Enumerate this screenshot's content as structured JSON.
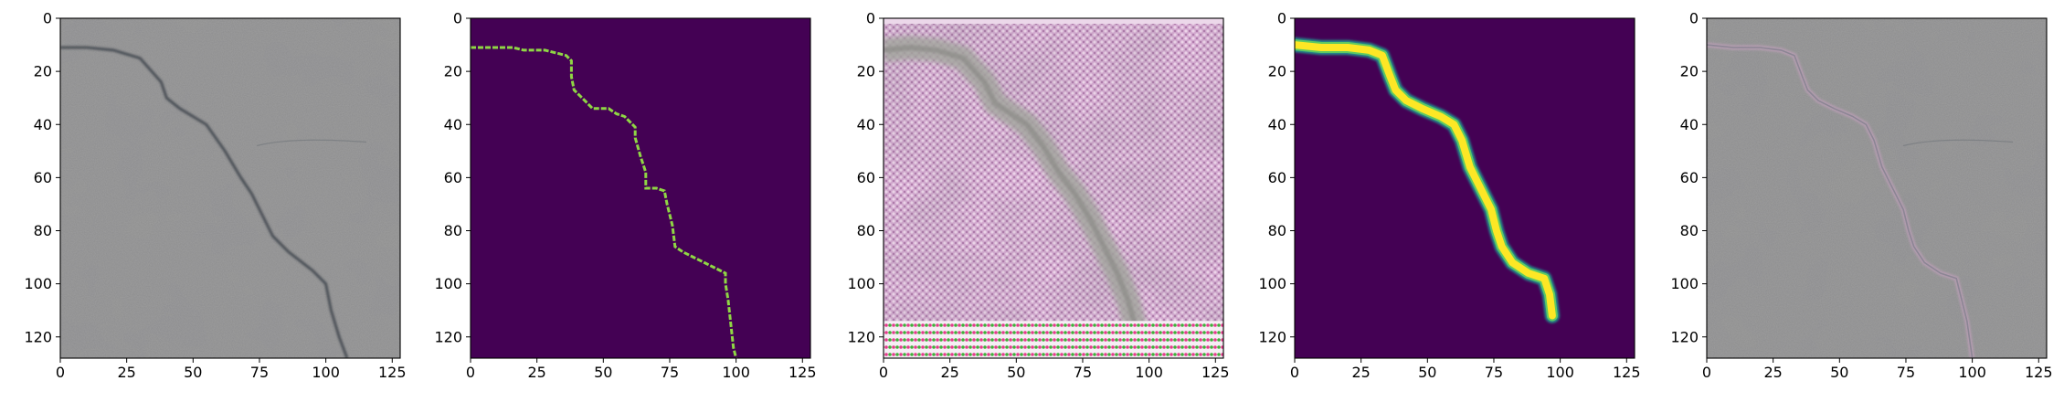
{
  "figure": {
    "background": "#ffffff"
  },
  "chart_data": [
    {
      "type": "heatmap",
      "panel": "crack-photo",
      "colormap": "rgb-photo",
      "xlim": [
        0,
        128
      ],
      "ylim": [
        128,
        0
      ],
      "xticks": [
        0,
        25,
        50,
        75,
        100,
        125
      ],
      "yticks": [
        0,
        20,
        40,
        60,
        80,
        100,
        120
      ],
      "crack_path": [
        [
          0,
          11
        ],
        [
          10,
          11
        ],
        [
          20,
          12
        ],
        [
          30,
          15
        ],
        [
          38,
          24
        ],
        [
          40,
          30
        ],
        [
          45,
          34
        ],
        [
          55,
          40
        ],
        [
          62,
          50
        ],
        [
          68,
          60
        ],
        [
          72,
          66
        ],
        [
          76,
          74
        ],
        [
          80,
          82
        ],
        [
          86,
          88
        ],
        [
          95,
          95
        ],
        [
          100,
          100
        ],
        [
          102,
          110
        ],
        [
          105,
          120
        ],
        [
          108,
          128
        ]
      ],
      "colors": {
        "base": "#8e8e8e",
        "crack": "#343a44"
      }
    },
    {
      "type": "heatmap",
      "panel": "ground-truth-mask",
      "colormap": "viridis",
      "xlim": [
        0,
        128
      ],
      "ylim": [
        128,
        0
      ],
      "xticks": [
        0,
        25,
        50,
        75,
        100,
        125
      ],
      "yticks": [
        0,
        20,
        40,
        60,
        80,
        100,
        120
      ],
      "crack_path": [
        [
          0,
          11
        ],
        [
          8,
          11
        ],
        [
          16,
          11
        ],
        [
          20,
          12
        ],
        [
          25,
          12
        ],
        [
          28,
          12
        ],
        [
          32,
          13
        ],
        [
          36,
          14
        ],
        [
          38,
          16
        ],
        [
          38,
          22
        ],
        [
          39,
          27
        ],
        [
          42,
          30
        ],
        [
          46,
          34
        ],
        [
          52,
          34
        ],
        [
          55,
          36
        ],
        [
          58,
          37
        ],
        [
          62,
          41
        ],
        [
          62,
          45
        ],
        [
          64,
          52
        ],
        [
          66,
          58
        ],
        [
          66,
          64
        ],
        [
          70,
          64
        ],
        [
          73,
          65
        ],
        [
          74,
          70
        ],
        [
          76,
          78
        ],
        [
          77,
          86
        ],
        [
          80,
          88
        ],
        [
          84,
          90
        ],
        [
          88,
          92
        ],
        [
          94,
          95
        ],
        [
          96,
          96
        ],
        [
          96,
          100
        ],
        [
          97,
          106
        ],
        [
          98,
          115
        ],
        [
          99,
          124
        ],
        [
          100,
          128
        ]
      ],
      "colors": {
        "background": "#440154",
        "crack": "#8fd744"
      }
    },
    {
      "type": "heatmap",
      "panel": "generated-crack-image",
      "colormap": "rgb-photo",
      "xlim": [
        0,
        128
      ],
      "ylim": [
        128,
        0
      ],
      "xticks": [
        0,
        25,
        50,
        75,
        100,
        125
      ],
      "yticks": [
        0,
        20,
        40,
        60,
        80,
        100,
        120
      ],
      "crack_path": [
        [
          0,
          12
        ],
        [
          10,
          11
        ],
        [
          20,
          12
        ],
        [
          30,
          15
        ],
        [
          38,
          24
        ],
        [
          42,
          32
        ],
        [
          48,
          36
        ],
        [
          54,
          40
        ],
        [
          60,
          48
        ],
        [
          66,
          58
        ],
        [
          72,
          66
        ],
        [
          78,
          76
        ],
        [
          84,
          88
        ],
        [
          88,
          96
        ],
        [
          92,
          106
        ],
        [
          96,
          120
        ]
      ],
      "colors": {
        "base": "#c49ac0",
        "crack": "#a2a49e",
        "bottom_band": "#f0e8f0"
      }
    },
    {
      "type": "heatmap",
      "panel": "predicted-mask",
      "colormap": "viridis",
      "xlim": [
        0,
        128
      ],
      "ylim": [
        128,
        0
      ],
      "xticks": [
        0,
        25,
        50,
        75,
        100,
        125
      ],
      "yticks": [
        0,
        20,
        40,
        60,
        80,
        100,
        120
      ],
      "crack_path": [
        [
          0,
          10
        ],
        [
          10,
          11
        ],
        [
          20,
          11
        ],
        [
          28,
          12
        ],
        [
          33,
          14
        ],
        [
          36,
          22
        ],
        [
          38,
          27
        ],
        [
          42,
          31
        ],
        [
          48,
          34
        ],
        [
          55,
          37
        ],
        [
          60,
          40
        ],
        [
          63,
          46
        ],
        [
          66,
          56
        ],
        [
          70,
          64
        ],
        [
          74,
          72
        ],
        [
          76,
          80
        ],
        [
          78,
          86
        ],
        [
          82,
          92
        ],
        [
          88,
          96
        ],
        [
          94,
          98
        ],
        [
          96,
          104
        ],
        [
          97,
          112
        ]
      ],
      "colors": {
        "background": "#440154",
        "edge": "#21918c",
        "crack": "#fde725"
      }
    },
    {
      "type": "heatmap",
      "panel": "overlay",
      "colormap": "rgb-photo",
      "xlim": [
        0,
        128
      ],
      "ylim": [
        128,
        0
      ],
      "xticks": [
        0,
        25,
        50,
        75,
        100,
        125
      ],
      "yticks": [
        0,
        20,
        40,
        60,
        80,
        100,
        120
      ],
      "crack_path": [
        [
          0,
          10
        ],
        [
          10,
          11
        ],
        [
          20,
          11
        ],
        [
          28,
          12
        ],
        [
          33,
          14
        ],
        [
          36,
          22
        ],
        [
          38,
          27
        ],
        [
          42,
          31
        ],
        [
          48,
          34
        ],
        [
          55,
          37
        ],
        [
          60,
          40
        ],
        [
          63,
          46
        ],
        [
          66,
          56
        ],
        [
          70,
          64
        ],
        [
          74,
          72
        ],
        [
          76,
          80
        ],
        [
          78,
          86
        ],
        [
          82,
          92
        ],
        [
          88,
          96
        ],
        [
          94,
          98
        ],
        [
          96,
          106
        ],
        [
          98,
          114
        ],
        [
          100,
          128
        ]
      ],
      "colors": {
        "base": "#8e8e8e",
        "crack": "#c2a0bc"
      }
    }
  ]
}
